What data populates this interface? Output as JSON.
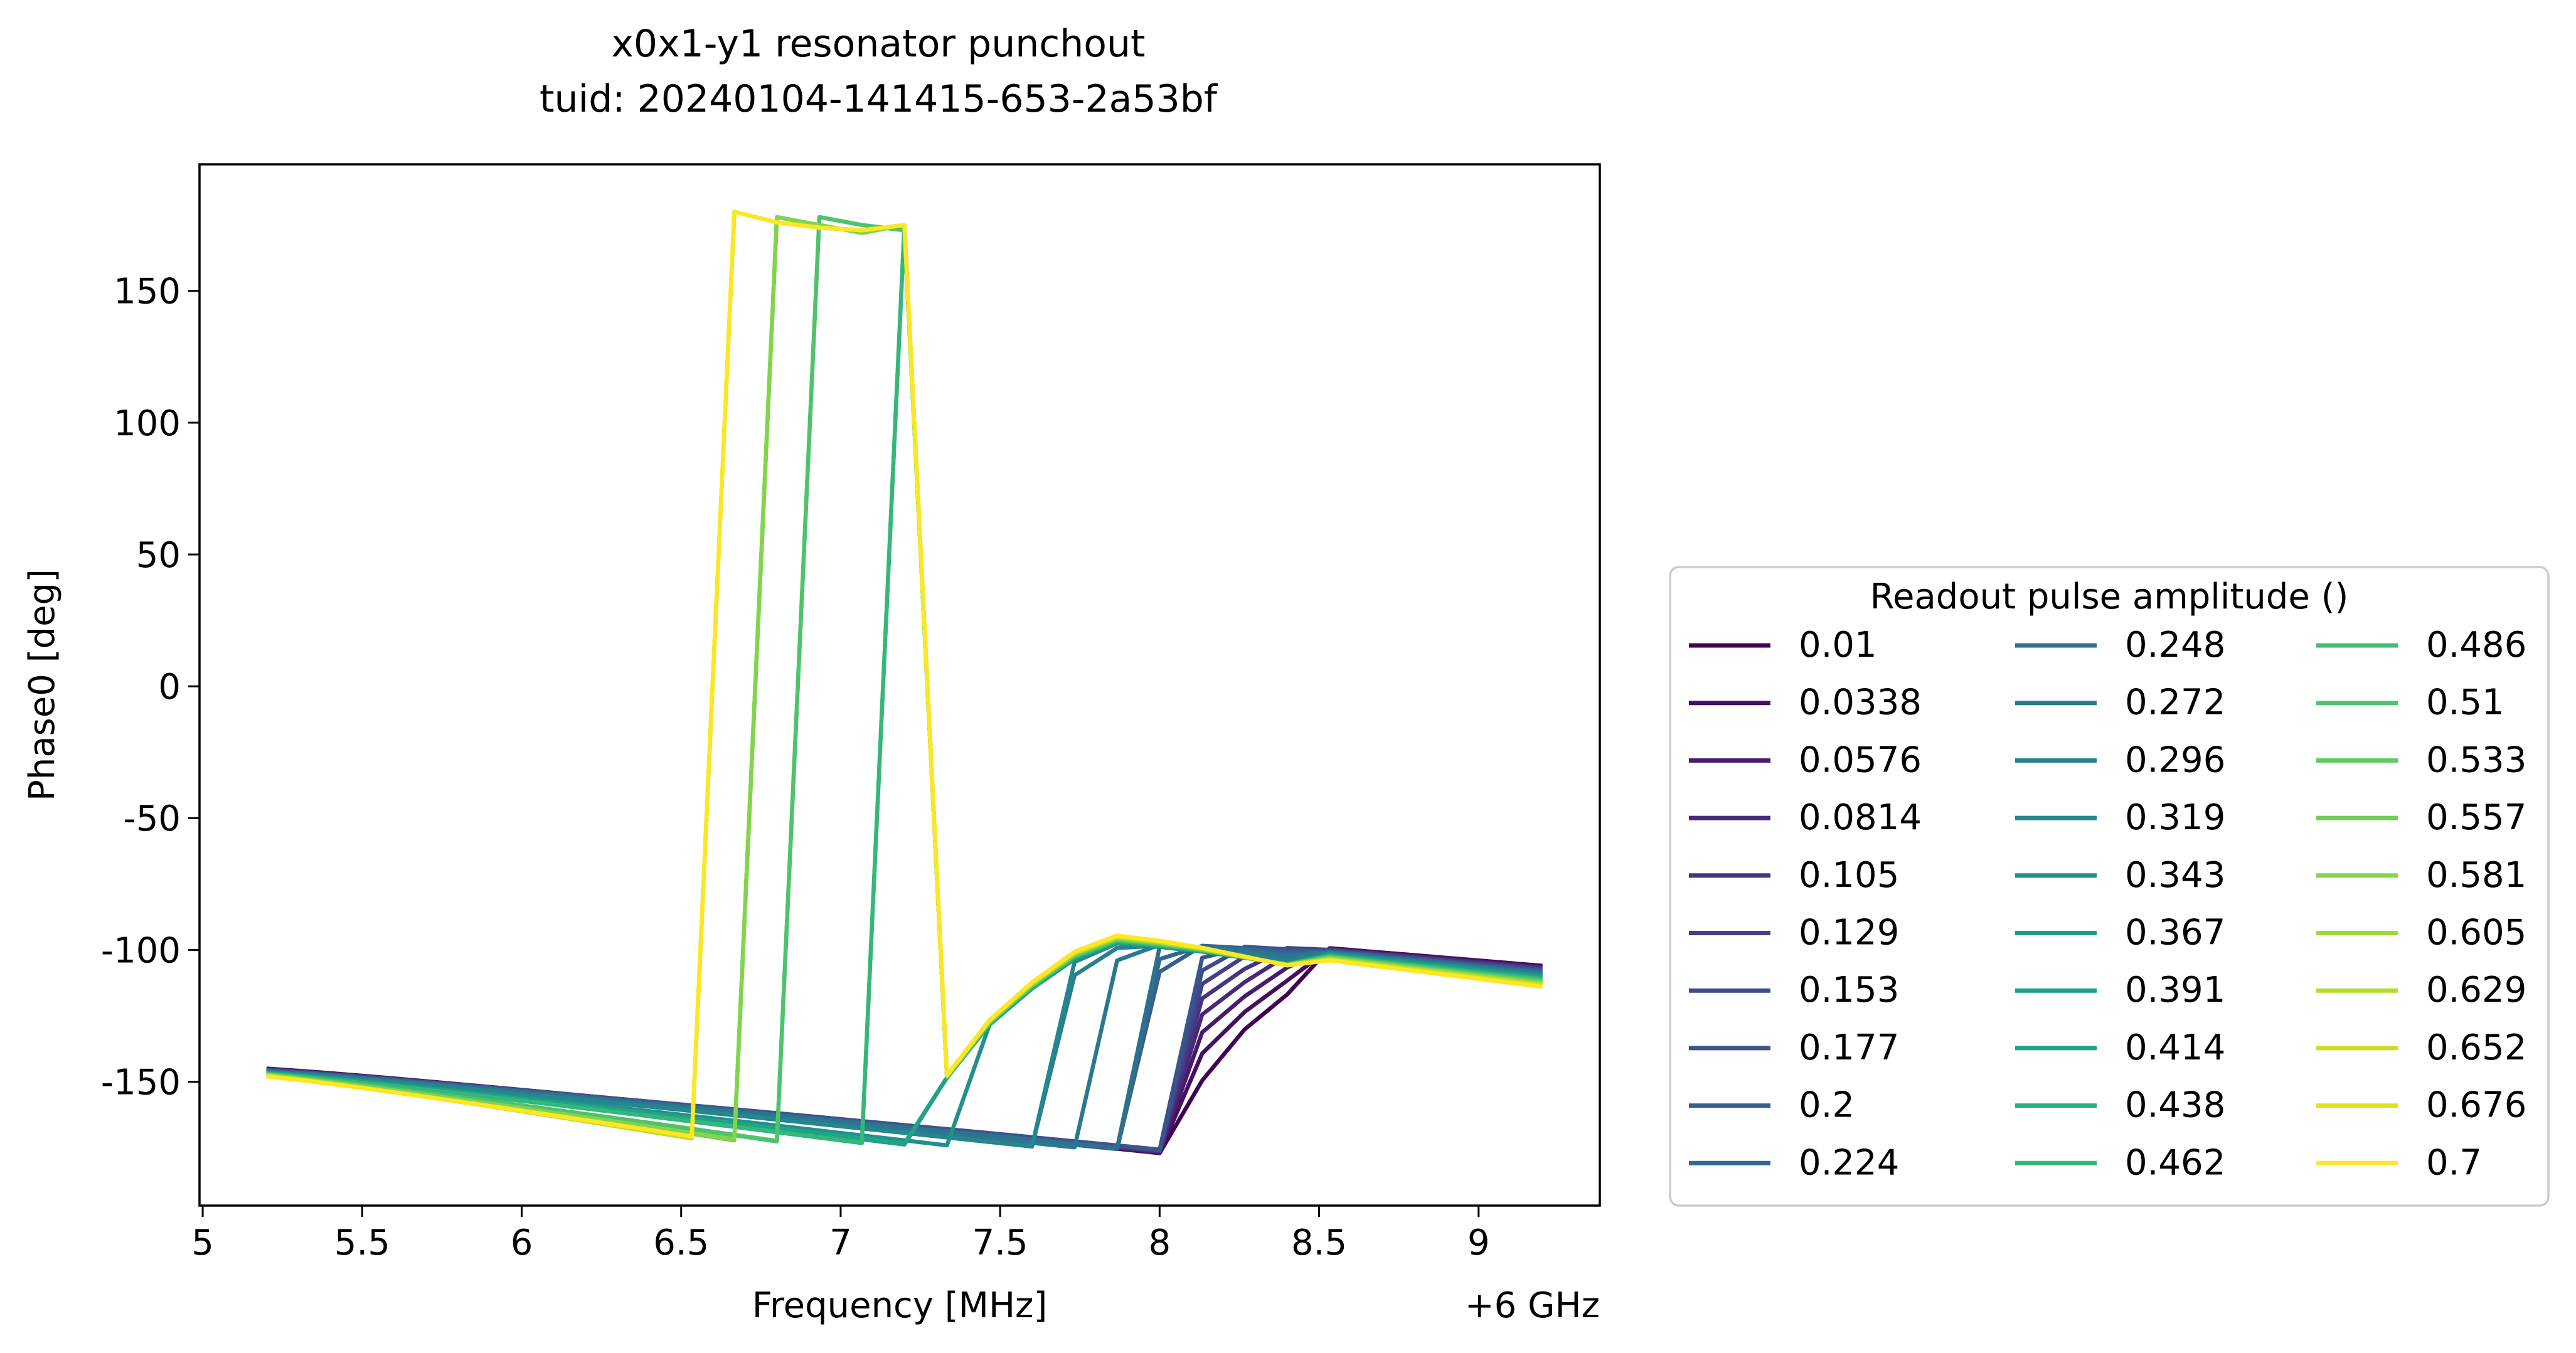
{
  "chart_data": {
    "type": "line",
    "title_line1": "x0x1-y1 resonator punchout",
    "title_line2": "tuid: 20240104-141415-653-2a53bf",
    "xlabel": "Frequency [MHz]",
    "ylabel": "Phase0 [deg]",
    "x_offset_label": "+6 GHz",
    "xlim": [
      4.99,
      9.38
    ],
    "ylim": [
      -197,
      198
    ],
    "xticks": [
      5,
      5.5,
      6,
      6.5,
      7,
      7.5,
      8,
      8.5,
      9
    ],
    "xtick_labels": [
      "5",
      "5.5",
      "6",
      "6.5",
      "7",
      "7.5",
      "8",
      "8.5",
      "9"
    ],
    "yticks": [
      150,
      100,
      50,
      0,
      -50,
      -100,
      -150
    ],
    "ytick_labels": [
      "150",
      "100",
      "50",
      "0",
      "-50",
      "-100",
      "-150"
    ],
    "grid": false,
    "legend": {
      "title": "Readout pulse amplitude ()",
      "placement": "outside right, lower",
      "columns": 3,
      "entries": [
        "0.01",
        "0.0338",
        "0.0576",
        "0.0814",
        "0.105",
        "0.129",
        "0.153",
        "0.177",
        "0.2",
        "0.224",
        "0.248",
        "0.272",
        "0.296",
        "0.319",
        "0.343",
        "0.367",
        "0.391",
        "0.414",
        "0.438",
        "0.462",
        "0.486",
        "0.51",
        "0.533",
        "0.557",
        "0.581",
        "0.605",
        "0.629",
        "0.652",
        "0.676",
        "0.7"
      ]
    },
    "series_colors": [
      "#440154",
      "#470e61",
      "#481b6d",
      "#482878",
      "#453581",
      "#424086",
      "#3e4c8a",
      "#3a548c",
      "#355f8d",
      "#31688e",
      "#2d718e",
      "#2a788e",
      "#27808e",
      "#24868e",
      "#21918c",
      "#1f988b",
      "#1fa088",
      "#20a486",
      "#28ae80",
      "#35b779",
      "#3fbc73",
      "#4ec36b",
      "#60ca60",
      "#71cf57",
      "#84d44b",
      "#9bd93c",
      "#b2dd2d",
      "#c8e020",
      "#dde318",
      "#fde725"
    ],
    "x_grid": {
      "start": 5.2,
      "stop": 9.2,
      "n": 31
    },
    "series": [
      {
        "name": "0.01",
        "low_anchor": [
          -180,
          -178,
          -172,
          -158,
          -118,
          -97,
          -94
        ],
        "lead_step": 8.07,
        "upper": [
          158,
          177,
          175,
          170,
          166,
          171,
          178
        ]
      },
      {
        "name": "0.0338",
        "low_anchor": [
          -180,
          -178,
          -172,
          -158,
          -118,
          -97,
          -94
        ],
        "lead_step": 8.07,
        "upper": [
          158,
          177,
          175,
          170,
          166,
          171,
          178
        ]
      },
      {
        "name": "0.0576",
        "low_anchor": [
          -180,
          -178,
          -172,
          -158,
          -118,
          -97,
          -94
        ],
        "lead_step": 8.07,
        "upper": [
          158,
          177,
          175,
          170,
          166,
          171,
          178
        ]
      },
      {
        "name": "0.0814",
        "low_anchor": [
          -180,
          -178,
          -172,
          -158,
          -118,
          -97,
          -94
        ],
        "lead_step": 8.07,
        "upper": [
          158,
          177,
          175,
          170,
          166,
          171,
          178
        ]
      },
      {
        "name": "0.105",
        "low_anchor": [
          -180,
          -178,
          -172,
          -158,
          -118,
          -97,
          -94
        ],
        "lead_step": 8.07,
        "upper": [
          158,
          177,
          175,
          170,
          166,
          171,
          178
        ]
      },
      {
        "name": "0.129",
        "low_anchor": [
          -180,
          -178,
          -172,
          -158,
          -118,
          -97,
          -94
        ],
        "lead_step": 8.07,
        "upper": [
          158,
          177,
          175,
          170,
          166,
          171,
          178
        ]
      },
      {
        "name": "0.153",
        "low_anchor": [
          -180,
          -178,
          -172,
          -158,
          -118,
          -97,
          -94
        ],
        "lead_step": 8.07,
        "upper": [
          158,
          177,
          175,
          170,
          166,
          171,
          178
        ]
      },
      {
        "name": "0.177",
        "low_anchor": [
          -180,
          -178,
          -172,
          -158,
          -118,
          -97,
          -94
        ],
        "lead_step": 8.07,
        "upper": [
          158,
          177,
          175,
          170,
          166,
          171,
          178
        ]
      },
      {
        "name": "0.2",
        "low_anchor": [
          -180,
          -178,
          -172,
          -158,
          -118,
          -97,
          -94
        ],
        "lead_step": 7.93,
        "upper": [
          168,
          177,
          175,
          170,
          166,
          171,
          178
        ]
      },
      {
        "name": "0.224",
        "low_anchor": [
          -180,
          -178,
          -172,
          -158,
          -118,
          -97,
          -94
        ],
        "lead_step": 7.93,
        "upper": [
          168,
          177,
          175,
          170,
          166,
          171,
          178
        ]
      },
      {
        "name": "0.248",
        "low_anchor": [
          -180,
          -178,
          -172,
          -158,
          -118,
          -97,
          -94
        ],
        "lead_step": 7.93,
        "upper": [
          168,
          177,
          175,
          170,
          166,
          171,
          178
        ]
      },
      {
        "name": "0.272",
        "low_anchor": [
          -180,
          -178,
          -172,
          -158,
          -118,
          -97,
          -94
        ],
        "lead_step": 7.8,
        "upper": [
          168,
          177,
          175,
          170,
          166,
          171,
          178
        ]
      },
      {
        "name": "0.296",
        "low_anchor": [
          -180,
          -178,
          -172,
          -158,
          -118,
          -97,
          -94
        ],
        "lead_step": 7.67,
        "upper": [
          168,
          177,
          175,
          170,
          166,
          171,
          178
        ]
      },
      {
        "name": "0.319",
        "low_anchor": [
          -180,
          -178,
          -172,
          -158,
          -118,
          -97,
          -94
        ],
        "lead_step": 7.67,
        "upper": [
          168,
          177,
          175,
          170,
          166,
          171,
          178
        ]
      },
      {
        "name": "0.343",
        "low_anchor": [
          -180,
          -178,
          -172,
          -158,
          -118,
          -97,
          -94
        ],
        "lead_step": 7.4,
        "upper": [
          178,
          177,
          175,
          170,
          166,
          171,
          178
        ]
      },
      {
        "name": "0.367",
        "low_anchor": [
          -180,
          -178,
          -172,
          -158,
          -118,
          -97,
          -94
        ],
        "lead_step": 7.27,
        "upper": [
          178,
          177,
          175,
          170,
          166,
          171,
          178
        ]
      },
      {
        "name": "0.391",
        "low_anchor": [
          -180,
          -178,
          -172,
          -158,
          -118,
          -97,
          -94
        ],
        "lead_step": 7.27,
        "upper": [
          178,
          177,
          175,
          170,
          166,
          171,
          178
        ]
      },
      {
        "name": "0.414",
        "low_anchor": [
          -180,
          -178,
          -172,
          -158,
          -118,
          -97,
          -94
        ],
        "lead_step": 7.27,
        "upper": [
          178,
          177,
          175,
          170,
          166,
          171,
          178
        ]
      },
      {
        "name": "0.438",
        "low_anchor": [
          -180,
          -178,
          -172,
          -158,
          -118,
          -97,
          -94
        ],
        "lead_step": 7.13,
        "upper": [
          178,
          177,
          175,
          170,
          166,
          171,
          178
        ]
      },
      {
        "name": "0.462",
        "low_anchor": [
          -180,
          -178,
          -172,
          -158,
          -118,
          -97,
          -94
        ],
        "lead_step": 7.13,
        "upper": [
          178,
          177,
          175,
          170,
          166,
          171,
          178
        ]
      },
      {
        "name": "0.486",
        "low_anchor": [
          -180,
          -178,
          -172,
          -158,
          -118,
          -97,
          -94
        ],
        "lead_step": 6.87,
        "upper": [
          178,
          177,
          175,
          172,
          173,
          175,
          176
        ]
      },
      {
        "name": "0.51",
        "low_anchor": [
          -180,
          -178,
          -172,
          -158,
          -118,
          -97,
          -94
        ],
        "lead_step": 6.87,
        "upper": [
          178,
          177,
          175,
          172,
          173,
          175,
          176
        ]
      },
      {
        "name": "0.533",
        "low_anchor": [
          -180,
          -178,
          -172,
          -158,
          -118,
          -97,
          -94
        ],
        "lead_step": 6.73,
        "upper": [
          178,
          177,
          175,
          172,
          173,
          175,
          176
        ]
      },
      {
        "name": "0.557",
        "low_anchor": [
          -180,
          -178,
          -172,
          -158,
          -118,
          -97,
          -94
        ],
        "lead_step": 6.73,
        "upper": [
          178,
          177,
          175,
          172,
          173,
          175,
          176
        ]
      },
      {
        "name": "0.581",
        "low_anchor": [
          -180,
          -178,
          -172,
          -158,
          -118,
          -97,
          -94
        ],
        "lead_step": 6.73,
        "upper": [
          178,
          177,
          175,
          172,
          173,
          175,
          176
        ]
      },
      {
        "name": "0.605",
        "low_anchor": [
          -180,
          -178,
          -172,
          -158,
          -118,
          -97,
          -94
        ],
        "lead_step": 6.6,
        "upper": [
          180,
          176,
          174,
          172,
          173,
          175,
          176
        ]
      },
      {
        "name": "0.629",
        "low_anchor": [
          -180,
          -178,
          -172,
          -158,
          -118,
          -97,
          -94
        ],
        "lead_step": 6.6,
        "upper": [
          180,
          176,
          174,
          172,
          173,
          175,
          176
        ]
      },
      {
        "name": "0.652",
        "low_anchor": [
          -180,
          -178,
          -172,
          -158,
          -118,
          -97,
          -94
        ],
        "lead_step": 6.6,
        "upper": [
          180,
          176,
          174,
          172,
          173,
          175,
          176
        ]
      },
      {
        "name": "0.676",
        "low_anchor": [
          -180,
          -178,
          -172,
          -158,
          -118,
          -97,
          -94
        ],
        "lead_step": 6.6,
        "upper": [
          180,
          176,
          174,
          172,
          173,
          175,
          176
        ]
      },
      {
        "name": "0.7",
        "low_anchor": [
          -180,
          -178,
          -172,
          -158,
          -118,
          -97,
          -94
        ],
        "lead_step": 6.6,
        "upper": [
          180,
          176,
          174,
          172,
          173,
          175,
          176
        ]
      }
    ]
  }
}
